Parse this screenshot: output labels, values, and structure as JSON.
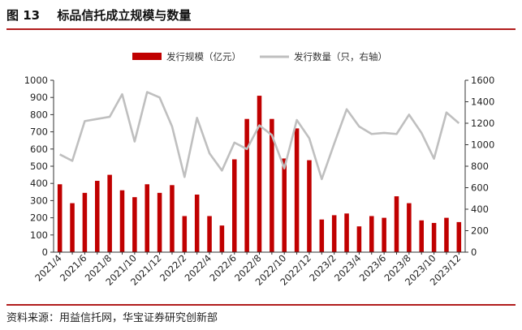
{
  "figure": {
    "number": "图 13",
    "title": "标品信托成立规模与数量",
    "source": "资料来源：用益信托网，华宝证券研究创新部"
  },
  "colors": {
    "bar": "#c00000",
    "line": "#bfbfbf",
    "rule": "#b11c1c",
    "axis": "#333333"
  },
  "chart_data": {
    "type": "bar",
    "categories": [
      "2021/4",
      "2021/5",
      "2021/6",
      "2021/7",
      "2021/8",
      "2021/9",
      "2021/10",
      "2021/11",
      "2021/12",
      "2022/1",
      "2022/2",
      "2022/3",
      "2022/4",
      "2022/5",
      "2022/6",
      "2022/7",
      "2022/8",
      "2022/9",
      "2022/10",
      "2022/11",
      "2022/12",
      "2023/1",
      "2023/2",
      "2023/3",
      "2023/4",
      "2023/5",
      "2023/6",
      "2023/7",
      "2023/8",
      "2023/9",
      "2023/10",
      "2023/11",
      "2023/12"
    ],
    "x_tick_labels": [
      "2021/4",
      "2021/6",
      "2021/8",
      "2021/10",
      "2021/12",
      "2022/2",
      "2022/4",
      "2022/6",
      "2022/8",
      "2022/10",
      "2022/12",
      "2023/2",
      "2023/4",
      "2023/6",
      "2023/8",
      "2023/10",
      "2023/12"
    ],
    "series": [
      {
        "name": "发行规模（亿元）",
        "type": "bar",
        "axis": "left",
        "values": [
          395,
          285,
          345,
          415,
          450,
          360,
          320,
          395,
          345,
          390,
          210,
          335,
          210,
          155,
          540,
          775,
          910,
          775,
          545,
          720,
          535,
          190,
          215,
          225,
          150,
          210,
          200,
          325,
          285,
          185,
          170,
          200,
          175
        ]
      },
      {
        "name": "发行数量（只，右轴）",
        "type": "line",
        "axis": "right",
        "values": [
          910,
          850,
          1220,
          1240,
          1260,
          1470,
          1030,
          1490,
          1440,
          1170,
          700,
          1250,
          920,
          760,
          1020,
          960,
          1180,
          1090,
          780,
          1230,
          1060,
          680,
          1010,
          1330,
          1170,
          1100,
          1110,
          1100,
          1280,
          1110,
          870,
          1300,
          1200
        ]
      }
    ],
    "y_left": {
      "min": 0,
      "max": 1000,
      "ticks": [
        0,
        100,
        200,
        300,
        400,
        500,
        600,
        700,
        800,
        900,
        1000
      ]
    },
    "y_right": {
      "min": 0,
      "max": 1600,
      "ticks": [
        0,
        200,
        400,
        600,
        800,
        1000,
        1200,
        1400,
        1600
      ]
    },
    "legend_position": "top-center",
    "grid": false
  }
}
